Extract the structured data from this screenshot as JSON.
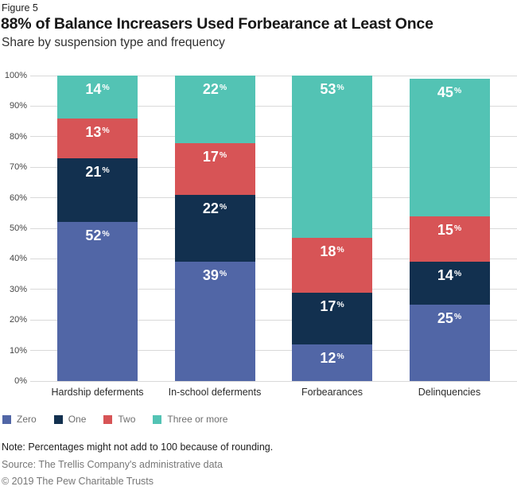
{
  "figure_label": "Figure 5",
  "title": "88% of Balance Increasers Used Forbearance at Least Once",
  "subtitle": "Share by suspension type and frequency",
  "chart_data": {
    "type": "bar",
    "stacked": true,
    "value_suffix": "%",
    "categories": [
      "Hardship deferments",
      "In-school deferments",
      "Forbearances",
      "Delinquencies"
    ],
    "series": [
      {
        "name": "Zero",
        "color": "#5166a6",
        "values": [
          52,
          39,
          12,
          25
        ]
      },
      {
        "name": "One",
        "color": "#12304f",
        "values": [
          21,
          22,
          17,
          14
        ]
      },
      {
        "name": "Two",
        "color": "#d75456",
        "values": [
          13,
          17,
          18,
          15
        ]
      },
      {
        "name": "Three or more",
        "color": "#53c3b4",
        "values": [
          14,
          22,
          53,
          45
        ]
      }
    ],
    "y_axis": {
      "min": 0,
      "max": 100,
      "tick_step": 10,
      "ticks": [
        "0%",
        "10%",
        "20%",
        "30%",
        "40%",
        "50%",
        "60%",
        "70%",
        "80%",
        "90%",
        "100%"
      ]
    },
    "grid": true,
    "gridline_color": "#d9d9d9",
    "legend_position": "bottom",
    "bar_label_color": "#ffffff"
  },
  "footer": {
    "note": "Note: Percentages might not add to 100 because of rounding.",
    "source": "Source: The Trellis Company's administrative data",
    "copyright": "© 2019 The Pew Charitable Trusts"
  }
}
